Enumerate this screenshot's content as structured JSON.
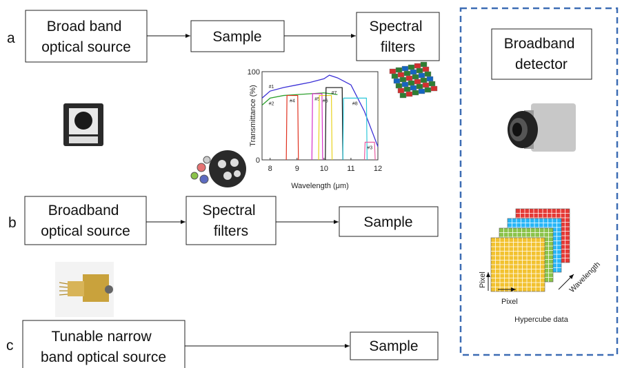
{
  "row_a": {
    "label": "a",
    "source": [
      "Broad band",
      "optical source"
    ],
    "sample": "Sample",
    "filters": [
      "Spectral",
      "filters"
    ]
  },
  "row_b": {
    "label": "b",
    "source": [
      "Broadband",
      "optical source"
    ],
    "filters": [
      "Spectral",
      "filters"
    ],
    "sample": "Sample"
  },
  "row_c": {
    "label": "c",
    "source": [
      "Tunable narrow",
      "band optical source"
    ],
    "sample": "Sample"
  },
  "detector": {
    "title": [
      "Broadband",
      "detector"
    ],
    "axis_pixel_y": "Pixel",
    "axis_pixel_x": "Pixel",
    "axis_wavelength": "Wavelength",
    "caption": "Hypercube data"
  },
  "inset_chart": {
    "type": "line",
    "x_label": "Wavelength (μm)",
    "y_label": "Transmittance (%)",
    "xlim": [
      7.7,
      12
    ],
    "ylim": [
      0,
      100
    ],
    "xticks": [
      8,
      9,
      10,
      11,
      12
    ],
    "yticks": [
      0,
      100
    ],
    "series": [
      {
        "name": "#1",
        "color": "#3a2fd6",
        "x": [
          7.7,
          8,
          8.5,
          9,
          9.5,
          10,
          10.2,
          10.5,
          11,
          11.5,
          12
        ],
        "values": [
          70,
          78,
          82,
          85,
          88,
          92,
          96,
          93,
          85,
          55,
          15
        ]
      },
      {
        "name": "#2",
        "color": "#2ca02c",
        "x": [
          7.7,
          8,
          8.5,
          9,
          9.5,
          10,
          10.5
        ],
        "values": [
          62,
          70,
          73,
          74,
          75,
          76,
          74
        ]
      }
    ],
    "filters": [
      {
        "name": "#4",
        "color": "#e0301e",
        "x": [
          8.6,
          9.05
        ],
        "peak": 73
      },
      {
        "name": "#5",
        "color": "#d62fc8",
        "x": [
          9.55,
          9.95
        ],
        "peak": 75
      },
      {
        "name": "#6",
        "color": "#e8d21c",
        "x": [
          9.8,
          10.3
        ],
        "peak": 73
      },
      {
        "name": "#7",
        "color": "#111111",
        "x": [
          10.05,
          10.7
        ],
        "peak": 82
      },
      {
        "name": "#8",
        "color": "#2bc7d9",
        "x": [
          10.7,
          11.6
        ],
        "peak": 70
      },
      {
        "name": "#3",
        "color": "#e85aa0",
        "x": [
          11.5,
          11.9
        ],
        "peak": 20
      }
    ]
  }
}
